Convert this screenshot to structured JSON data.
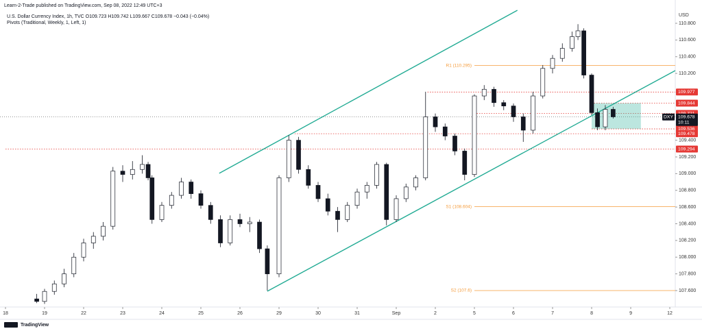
{
  "header": {
    "publisher": "Learn-2-Trade published on TradingView.com, Sep 08, 2022 12:49 UTC+3",
    "symbol_line": "U.S. Dollar Currency Index, 1h, TVC  O109.723 H109.742 L109.667 C109.678 −0.043 (−0.04%)",
    "indicator": "Pivots (Traditional, Weekly, 1, Left, 1)"
  },
  "footer": {
    "logo": "TradingView"
  },
  "chart_data": {
    "type": "candlestick",
    "currency": "USD",
    "xlim": [
      0,
      17.14
    ],
    "ylim": [
      107.403,
      110.964
    ],
    "xticks": [
      {
        "value": 0,
        "label": "18"
      },
      {
        "value": 1,
        "label": "19"
      },
      {
        "value": 2,
        "label": "22"
      },
      {
        "value": 3,
        "label": "23"
      },
      {
        "value": 4,
        "label": "24"
      },
      {
        "value": 5,
        "label": "25"
      },
      {
        "value": 6,
        "label": "26"
      },
      {
        "value": 7,
        "label": "29"
      },
      {
        "value": 8,
        "label": "30"
      },
      {
        "value": 9,
        "label": "31"
      },
      {
        "value": 10,
        "label": "Sep"
      },
      {
        "value": 11,
        "label": "2"
      },
      {
        "value": 12,
        "label": "5"
      },
      {
        "value": 13,
        "label": "6"
      },
      {
        "value": 14,
        "label": "7"
      },
      {
        "value": 15,
        "label": "8"
      },
      {
        "value": 16,
        "label": "9"
      },
      {
        "value": 17,
        "label": "12"
      }
    ],
    "yticks": [
      {
        "value": 107.6,
        "label": "107.600"
      },
      {
        "value": 107.8,
        "label": "107.800"
      },
      {
        "value": 108.0,
        "label": "108.000"
      },
      {
        "value": 108.2,
        "label": "108.200"
      },
      {
        "value": 108.4,
        "label": "108.400"
      },
      {
        "value": 108.6,
        "label": "108.600"
      },
      {
        "value": 108.8,
        "label": "108.800"
      },
      {
        "value": 109.0,
        "label": "109.000"
      },
      {
        "value": 109.2,
        "label": "109.200"
      },
      {
        "value": 109.4,
        "label": "109.400"
      },
      {
        "value": 110.2,
        "label": "110.200"
      },
      {
        "value": 110.4,
        "label": "110.400"
      },
      {
        "value": 110.6,
        "label": "110.600"
      },
      {
        "value": 110.8,
        "label": "110.800"
      }
    ],
    "up_color": "#ffffff",
    "down_color": "#131722",
    "candles": {
      "x": [
        0.8,
        1.0,
        1.25,
        1.5,
        1.75,
        2.0,
        2.25,
        2.5,
        2.75,
        3.0,
        3.25,
        3.5,
        3.65,
        3.75,
        4.0,
        4.25,
        4.5,
        4.75,
        5.0,
        5.25,
        5.5,
        5.75,
        6.0,
        6.25,
        6.5,
        6.7,
        7.0,
        7.25,
        7.5,
        7.75,
        8.0,
        8.25,
        8.5,
        8.75,
        9.0,
        9.25,
        9.5,
        9.75,
        10.0,
        10.25,
        10.5,
        10.75,
        11.0,
        11.25,
        11.5,
        11.75,
        12.0,
        12.25,
        12.5,
        12.75,
        13.0,
        13.25,
        13.5,
        13.75,
        14.0,
        14.25,
        14.5,
        14.65,
        14.8,
        15.0,
        15.15,
        15.35,
        15.55
      ],
      "open": [
        107.5,
        107.47,
        107.59,
        107.68,
        107.8,
        108.0,
        108.17,
        108.25,
        108.37,
        109.03,
        108.99,
        109.05,
        109.11,
        108.95,
        108.45,
        108.62,
        108.74,
        108.9,
        108.76,
        108.62,
        108.45,
        108.17,
        108.45,
        108.4,
        108.42,
        108.1,
        107.8,
        108.95,
        109.4,
        109.05,
        108.86,
        108.7,
        108.55,
        108.45,
        108.62,
        108.78,
        108.86,
        109.11,
        108.45,
        108.7,
        108.84,
        108.95,
        109.68,
        109.56,
        109.45,
        109.27,
        108.99,
        109.93,
        110.01,
        109.85,
        109.81,
        109.68,
        109.52,
        109.93,
        110.26,
        110.38,
        110.5,
        110.64,
        110.71,
        110.18,
        109.73,
        109.56,
        109.77
      ],
      "high": [
        107.56,
        107.62,
        107.72,
        107.86,
        108.05,
        108.22,
        108.3,
        108.42,
        109.08,
        109.1,
        109.15,
        109.22,
        109.14,
        108.98,
        108.66,
        108.78,
        108.95,
        108.93,
        108.8,
        108.66,
        108.5,
        108.5,
        108.52,
        108.48,
        108.45,
        108.14,
        108.98,
        109.46,
        109.44,
        109.1,
        108.9,
        108.76,
        108.6,
        108.66,
        108.82,
        108.9,
        109.14,
        109.13,
        108.74,
        108.88,
        108.98,
        109.98,
        109.72,
        109.6,
        109.48,
        109.3,
        109.95,
        110.06,
        110.04,
        109.88,
        109.84,
        109.72,
        109.98,
        110.3,
        110.42,
        110.56,
        110.7,
        110.79,
        110.74,
        110.2,
        109.78,
        109.82,
        109.8
      ],
      "low": [
        107.45,
        107.44,
        107.55,
        107.64,
        107.76,
        107.95,
        108.1,
        108.2,
        108.33,
        108.9,
        108.93,
        109.0,
        108.92,
        108.4,
        108.42,
        108.58,
        108.7,
        108.7,
        108.58,
        108.4,
        108.12,
        108.14,
        108.36,
        108.3,
        108.05,
        107.6,
        107.76,
        108.9,
        109.0,
        108.82,
        108.66,
        108.5,
        108.3,
        108.42,
        108.58,
        108.7,
        108.82,
        108.38,
        108.42,
        108.66,
        108.8,
        108.92,
        109.5,
        109.4,
        109.22,
        108.92,
        108.96,
        109.88,
        109.8,
        109.76,
        109.62,
        109.38,
        109.48,
        109.9,
        110.2,
        110.34,
        110.46,
        110.6,
        110.14,
        109.7,
        109.52,
        109.52,
        109.66
      ],
      "close": [
        107.47,
        107.59,
        107.68,
        107.8,
        108.0,
        108.17,
        108.25,
        108.37,
        109.03,
        108.99,
        109.05,
        109.11,
        108.95,
        108.45,
        108.62,
        108.74,
        108.9,
        108.76,
        108.62,
        108.45,
        108.17,
        108.45,
        108.4,
        108.42,
        108.1,
        107.8,
        108.95,
        109.4,
        109.05,
        108.86,
        108.7,
        108.55,
        108.45,
        108.62,
        108.78,
        108.86,
        109.11,
        108.45,
        108.7,
        108.84,
        108.95,
        109.68,
        109.56,
        109.45,
        109.27,
        108.99,
        109.93,
        110.01,
        109.85,
        109.81,
        109.68,
        109.52,
        109.93,
        110.26,
        110.38,
        110.5,
        110.64,
        110.71,
        110.18,
        109.73,
        109.56,
        109.77,
        109.68
      ]
    },
    "pivots": [
      {
        "label": "R1 (110.295)",
        "value": 110.295,
        "x0": 12
      },
      {
        "label": "S1 (108.604)",
        "value": 108.604,
        "x0": 12
      },
      {
        "label": "S2 (107.6)",
        "value": 107.6,
        "x0": 12
      }
    ],
    "pivot_color": "#f59b3a",
    "levels": [
      {
        "value": 109.977,
        "x0": 10.8,
        "label": "109.977"
      },
      {
        "value": 109.844,
        "x0": 15.0,
        "label": "109.844"
      },
      {
        "value": 109.721,
        "x0": 12.0,
        "label": "109.721"
      },
      {
        "value": 109.536,
        "x0": 15.0,
        "label": "109.536"
      },
      {
        "value": 109.478,
        "x0": 7.4,
        "label": "109.478"
      },
      {
        "value": 109.294,
        "x0": 0,
        "label": "109.294"
      }
    ],
    "level_color": "#e53935",
    "last_price": {
      "symbol": "DXY",
      "value": 109.678,
      "label": "109.678",
      "countdown": "10:11"
    },
    "channel": {
      "color": "#22ab94",
      "upper": {
        "x": [
          5.47,
          13.1
        ],
        "y": [
          109.004,
          110.956
        ]
      },
      "lower": {
        "x": [
          6.7,
          17.14
        ],
        "y": [
          107.592,
          110.234
        ]
      }
    },
    "position_box": {
      "x": [
        15.0,
        16.26
      ],
      "top": 109.844,
      "bottom": 109.536,
      "color": "#22ab94"
    }
  }
}
